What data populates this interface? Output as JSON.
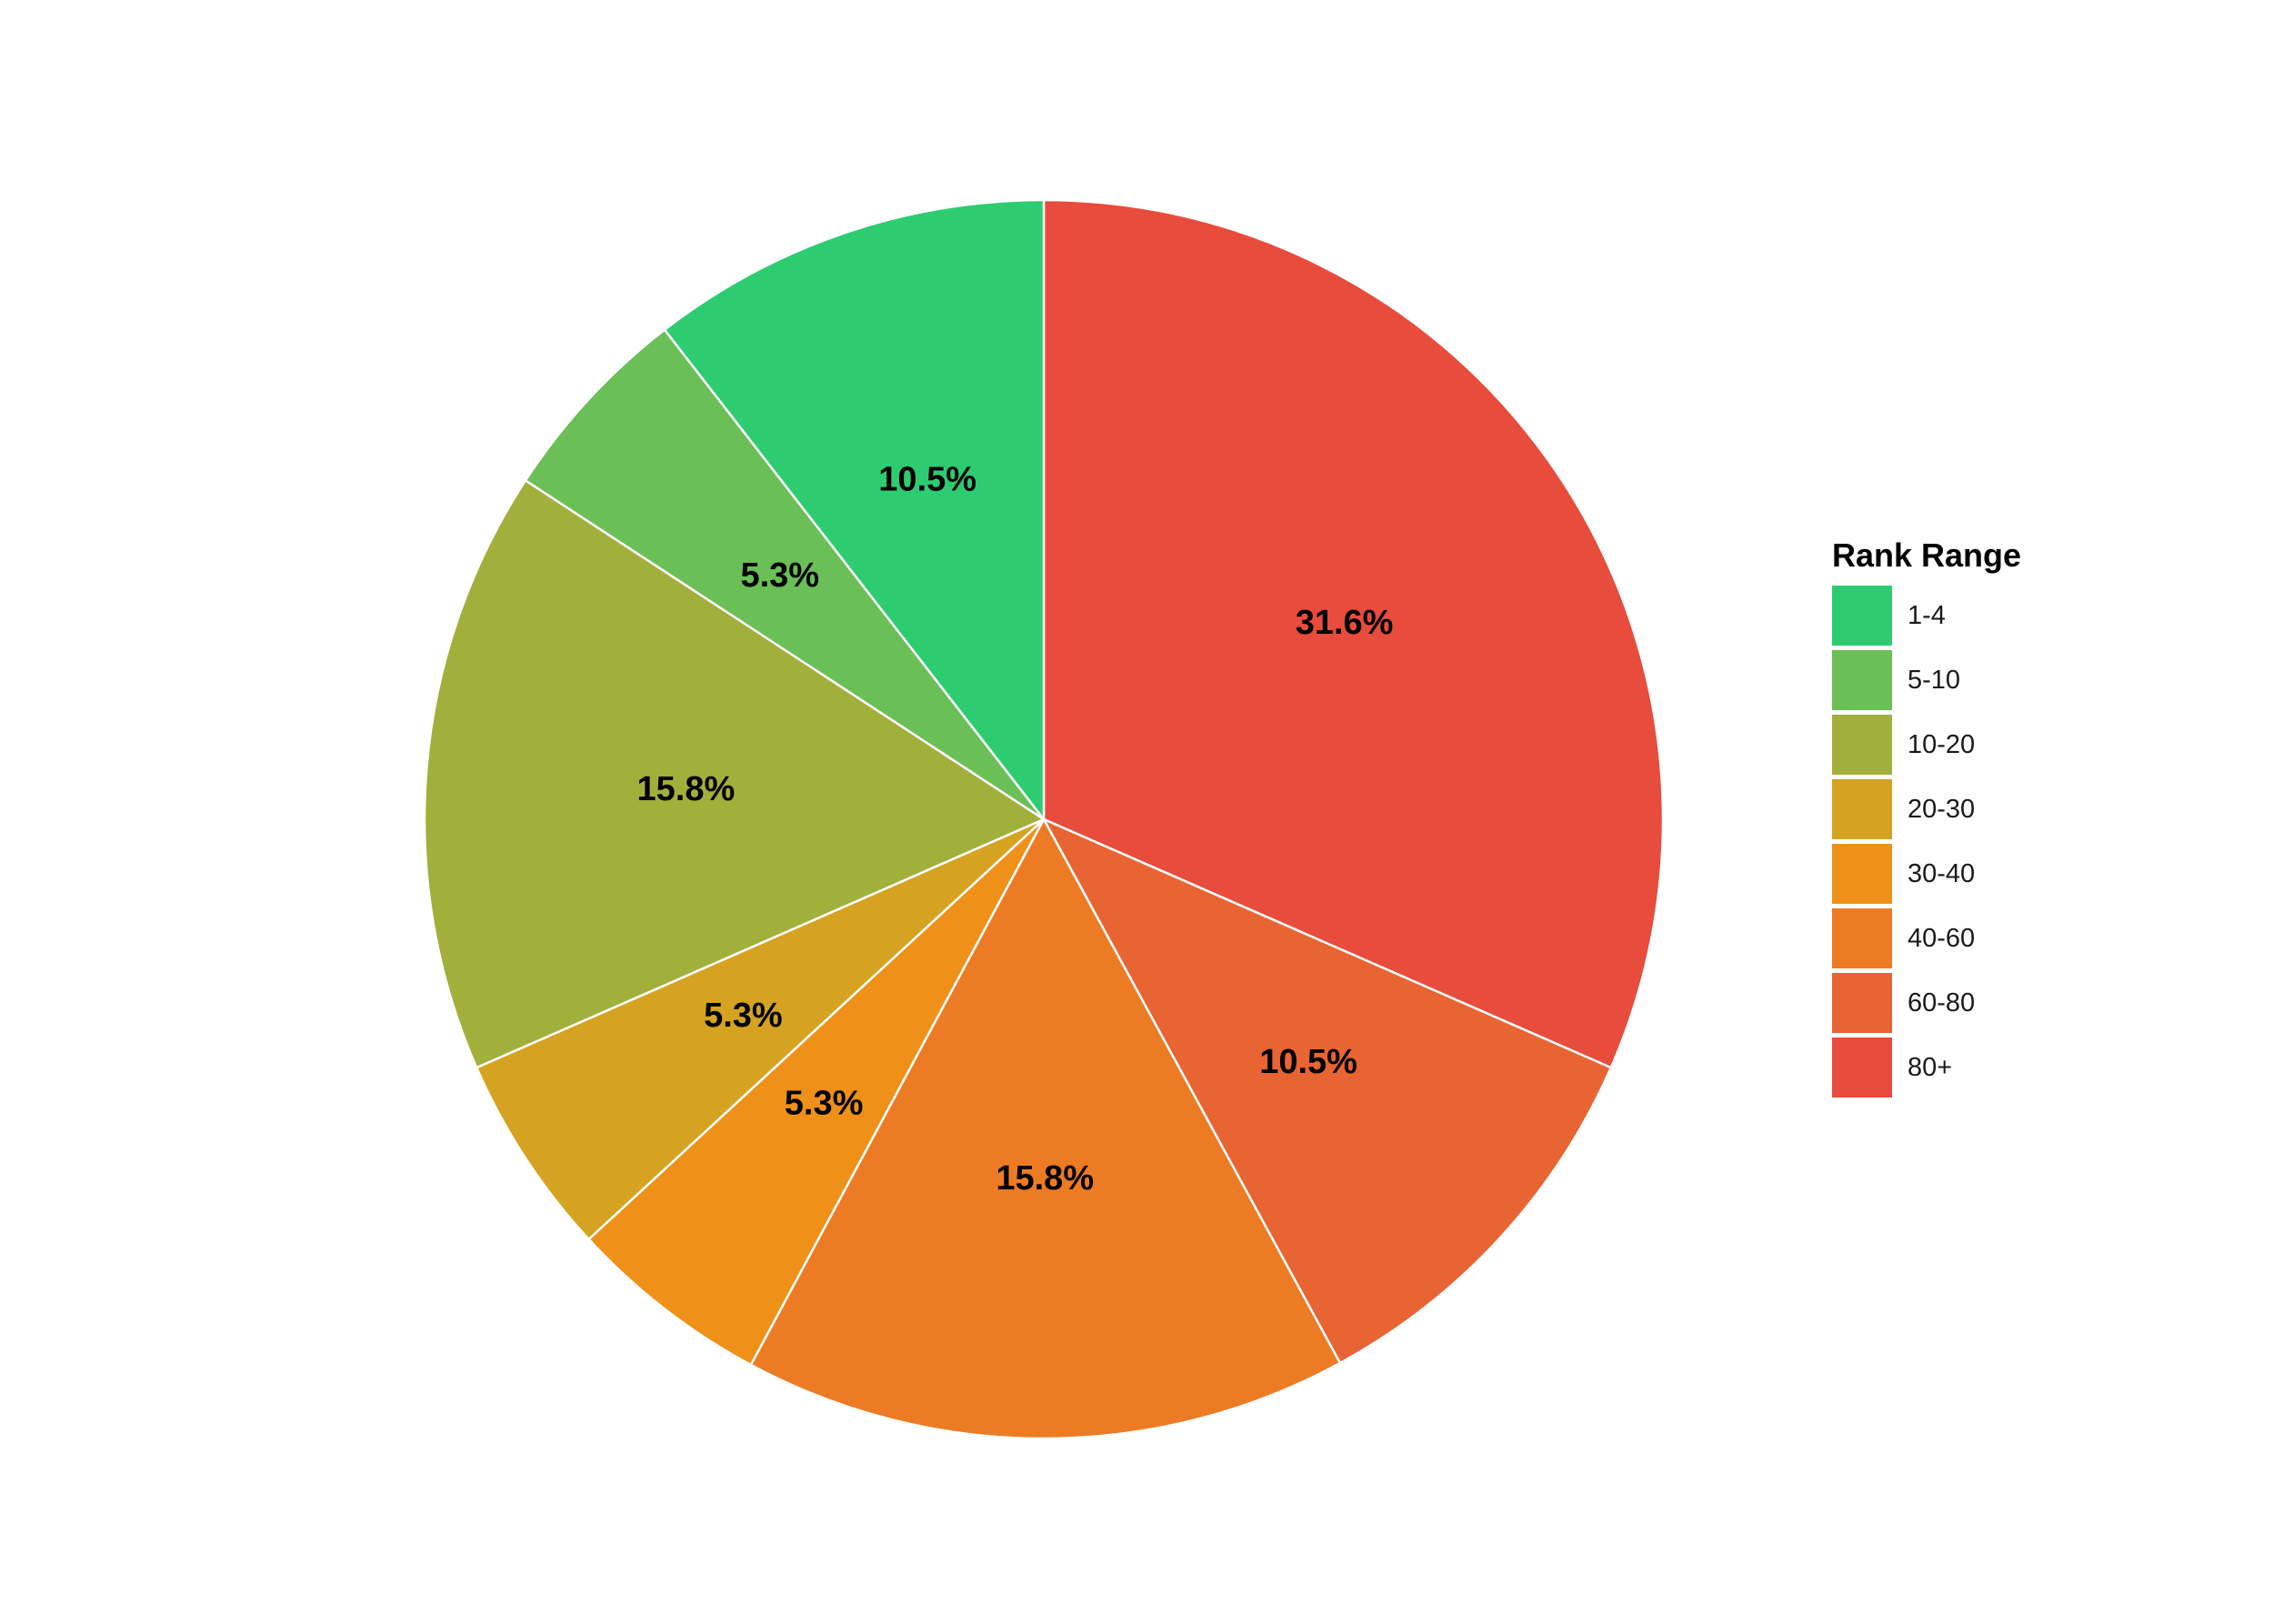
{
  "chart_data": {
    "type": "pie",
    "legend_title": "Rank Range",
    "legend_position": "right",
    "start_angle": "12 o'clock",
    "direction": "clockwise",
    "slices": [
      {
        "label": "1-4",
        "value": 10.5,
        "display": "10.5%",
        "color": "#2ecc71"
      },
      {
        "label": "5-10",
        "value": 5.3,
        "display": "5.3%",
        "color": "#6abf56"
      },
      {
        "label": "10-20",
        "value": 15.8,
        "display": "15.8%",
        "color": "#a1b03b"
      },
      {
        "label": "20-30",
        "value": 5.3,
        "display": "5.3%",
        "color": "#d5a321"
      },
      {
        "label": "30-40",
        "value": 5.3,
        "display": "5.3%",
        "color": "#ef9018"
      },
      {
        "label": "40-60",
        "value": 15.8,
        "display": "15.8%",
        "color": "#ed7b24"
      },
      {
        "label": "60-80",
        "value": 10.5,
        "display": "10.5%",
        "color": "#e86432"
      },
      {
        "label": "80+",
        "value": 31.6,
        "display": "31.6%",
        "color": "#e74c3c"
      }
    ]
  }
}
